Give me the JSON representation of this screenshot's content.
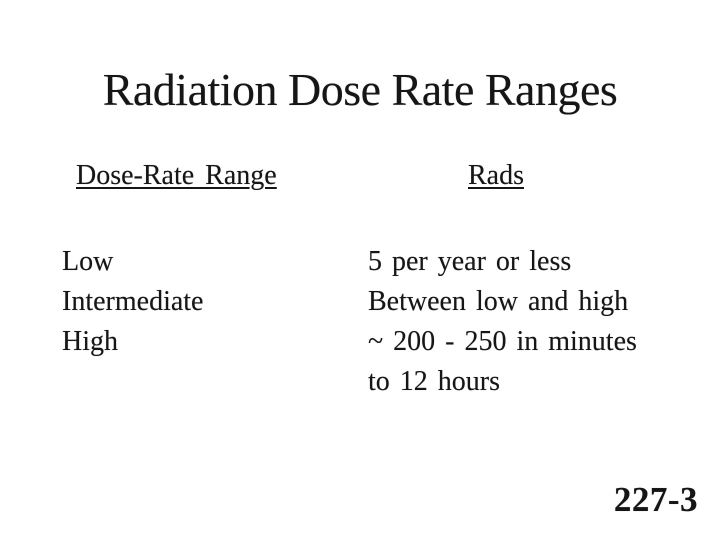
{
  "slide": {
    "title": "Radiation Dose Rate Ranges",
    "columns": {
      "left_header": "Dose-Rate Range",
      "right_header": "Rads"
    },
    "rows": [
      {
        "range": "Low",
        "rads": "5 per year or less"
      },
      {
        "range": "Intermediate",
        "rads": "Between low and high"
      },
      {
        "range": "High",
        "rads": "~ 200 - 250 in minutes to 12 hours"
      }
    ],
    "page_number": "227-3",
    "colors": {
      "background": "#ffffff",
      "text": "#161616"
    }
  }
}
